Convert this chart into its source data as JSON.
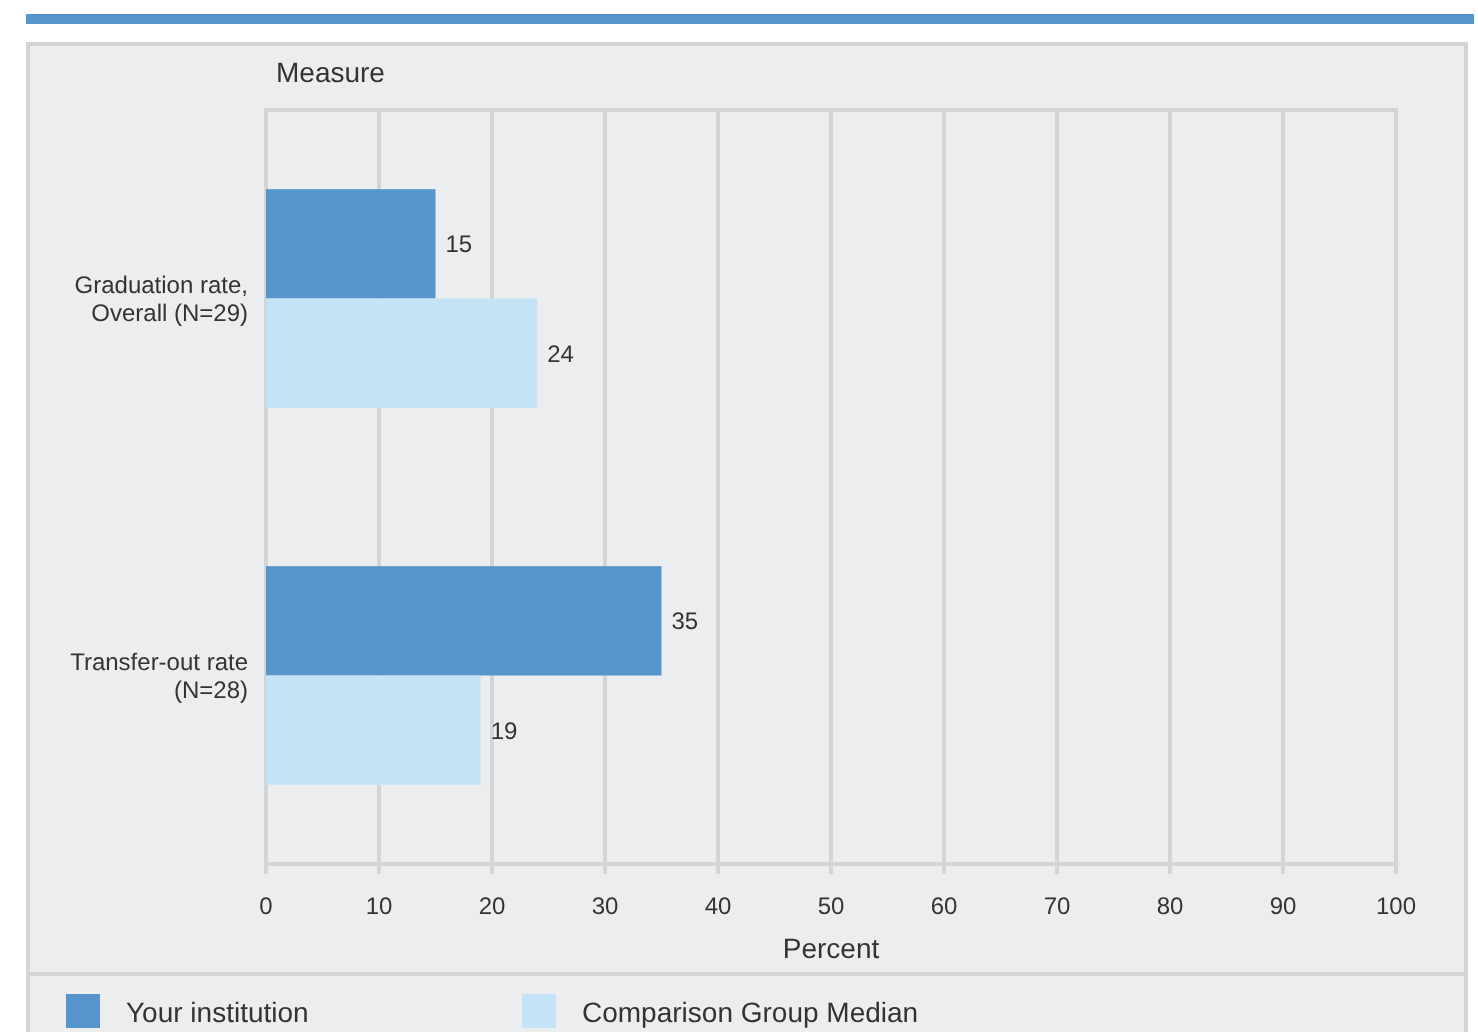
{
  "chart_data": {
    "type": "bar",
    "orientation": "horizontal",
    "ylabel": "Measure",
    "xlabel": "Percent",
    "categories": [
      "Graduation rate, Overall (N=29)",
      "Transfer-out rate (N=28)"
    ],
    "series": [
      {
        "name": "Your institution",
        "color": "#5595cc",
        "values": [
          15,
          35
        ]
      },
      {
        "name": "Comparison Group Median",
        "color": "#c5e3f6",
        "values": [
          24,
          19
        ]
      }
    ],
    "xlim": [
      0,
      100
    ],
    "xticks": [
      0,
      10,
      20,
      30,
      40,
      50,
      60,
      70,
      80,
      90,
      100
    ],
    "grid": "x",
    "legend": "bottom",
    "data_labels": true
  }
}
